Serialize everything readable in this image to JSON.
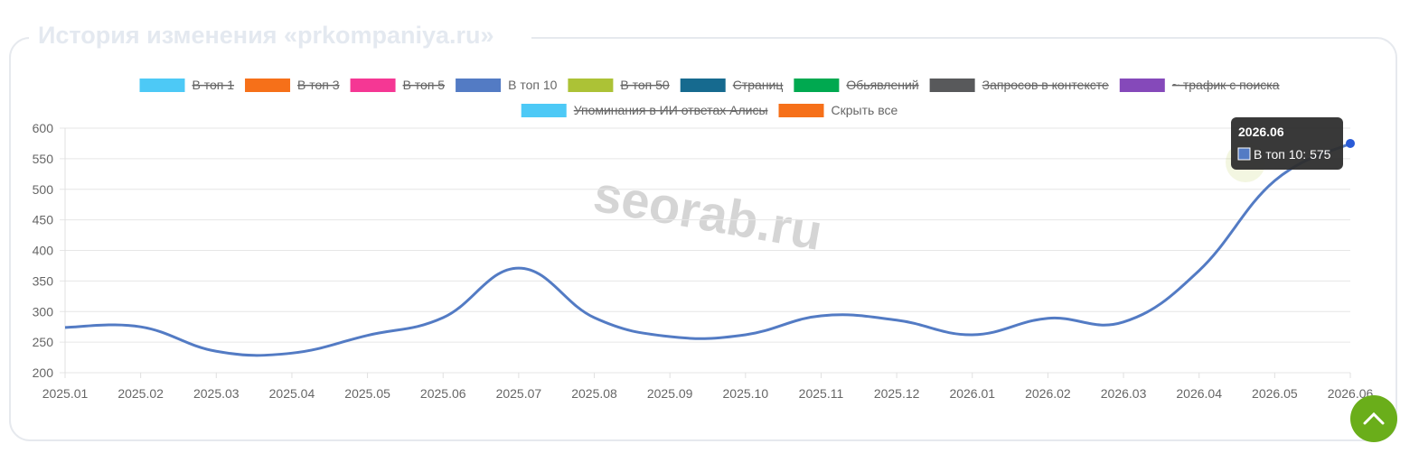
{
  "chart_data": {
    "type": "line",
    "title": "История изменения «prkompaniya.ru»",
    "watermark": "seorab.ru",
    "categories": [
      "2025.01",
      "2025.02",
      "2025.03",
      "2025.04",
      "2025.05",
      "2025.06",
      "2025.07",
      "2025.08",
      "2025.09",
      "2025.10",
      "2025.11",
      "2025.12",
      "2026.01",
      "2026.02",
      "2026.03",
      "2026.04",
      "2026.05",
      "2026.06"
    ],
    "series": [
      {
        "name": "В топ 1",
        "color": "#4dc9f6",
        "hidden": true
      },
      {
        "name": "В топ 3",
        "color": "#f67019",
        "hidden": true
      },
      {
        "name": "В топ 5",
        "color": "#f53794",
        "hidden": true
      },
      {
        "name": "В топ 10",
        "color": "#537bc4",
        "values": [
          274,
          275,
          235,
          232,
          261,
          290,
          371,
          290,
          259,
          262,
          293,
          286,
          262,
          289,
          283,
          367,
          514,
          575
        ]
      },
      {
        "name": "В топ 50",
        "color": "#acc236",
        "hidden": true
      },
      {
        "name": "Страниц",
        "color": "#166a8f",
        "hidden": true
      },
      {
        "name": "Обьявлений",
        "color": "#00a950",
        "hidden": true
      },
      {
        "name": "Запросов в контексте",
        "color": "#58595b",
        "hidden": true
      },
      {
        "name": "~ трафик с поиска",
        "color": "#8549ba",
        "hidden": true
      },
      {
        "name": "Упоминания в ИИ ответах Алисы",
        "color": "#4dc9f6",
        "hidden": true
      }
    ],
    "legend_button": {
      "label": "Скрыть все",
      "color": "#f67019"
    },
    "ylim": [
      200,
      600
    ],
    "yticks": [
      200,
      250,
      300,
      350,
      400,
      450,
      500,
      550,
      600
    ],
    "grid": true,
    "tooltip": {
      "title": "2026.06",
      "text": "В топ 10: 575"
    }
  }
}
